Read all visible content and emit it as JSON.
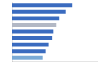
{
  "chart_data": {
    "type": "bar",
    "orientation": "horizontal",
    "categories": [
      null,
      null,
      null,
      null,
      null,
      null,
      null,
      null,
      null
    ],
    "values": [
      510000,
      455000,
      400000,
      375000,
      350000,
      340000,
      310000,
      285000,
      260000
    ],
    "colors": [
      "#3a6bbf",
      "#3a6bbf",
      "#3a6bbf",
      "#b2b8c5",
      "#3a6bbf",
      "#3a6bbf",
      "#3a6bbf",
      "#3a6bbf",
      "#7aaad6"
    ],
    "xlim": [
      0,
      720000
    ],
    "grid": false,
    "tick_labels": false
  }
}
